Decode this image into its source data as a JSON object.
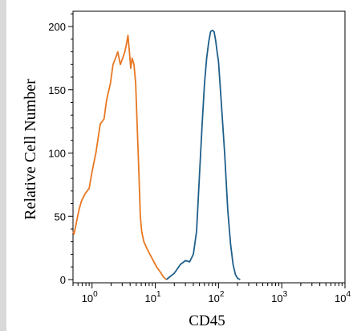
{
  "chart_data": {
    "type": "line",
    "xlabel": "CD45",
    "ylabel": "Relative Cell Number",
    "x_scale": "log",
    "xlim": [
      0.5,
      10000
    ],
    "ylim": [
      0,
      220
    ],
    "x_ticks": [
      {
        "value": 1,
        "base": "10",
        "exp": "0"
      },
      {
        "value": 10,
        "base": "10",
        "exp": "1"
      },
      {
        "value": 100,
        "base": "10",
        "exp": "2"
      },
      {
        "value": 1000,
        "base": "10",
        "exp": "3"
      },
      {
        "value": 10000,
        "base": "10",
        "exp": "4"
      }
    ],
    "y_ticks": [
      0,
      50,
      100,
      150,
      200
    ],
    "grid": false,
    "legend": "none",
    "series": [
      {
        "color": "#e87722",
        "x": [
          0.5,
          0.52,
          0.56,
          0.62,
          0.68,
          0.78,
          0.9,
          1.0,
          1.15,
          1.35,
          1.55,
          1.7,
          1.95,
          2.15,
          2.35,
          2.55,
          2.8,
          3.05,
          3.3,
          3.5,
          3.7,
          3.9,
          4.1,
          4.3,
          4.6,
          4.9,
          5.2,
          5.5,
          5.8,
          6.1,
          6.6,
          7.3,
          8.2,
          9.3,
          10.5,
          12.0,
          13.5,
          15.0
        ],
        "y": [
          38,
          36,
          44,
          55,
          62,
          68,
          72,
          85,
          100,
          123,
          127,
          142,
          155,
          170,
          175,
          180,
          170,
          175,
          180,
          186,
          193,
          180,
          167,
          175,
          170,
          155,
          118,
          85,
          50,
          38,
          30,
          25,
          20,
          15,
          10,
          6,
          2,
          0
        ]
      },
      {
        "color": "#1f5f8b",
        "x": [
          15,
          20,
          25,
          30,
          35,
          40,
          45,
          50,
          55,
          60,
          65,
          70,
          75,
          80,
          85,
          90,
          95,
          100,
          110,
          125,
          140,
          155,
          170,
          185,
          200,
          220
        ],
        "y": [
          0,
          5,
          12,
          15,
          14,
          20,
          38,
          82,
          122,
          155,
          175,
          188,
          196,
          197,
          196,
          189,
          180,
          172,
          142,
          100,
          55,
          28,
          12,
          4,
          1,
          0
        ]
      }
    ]
  }
}
